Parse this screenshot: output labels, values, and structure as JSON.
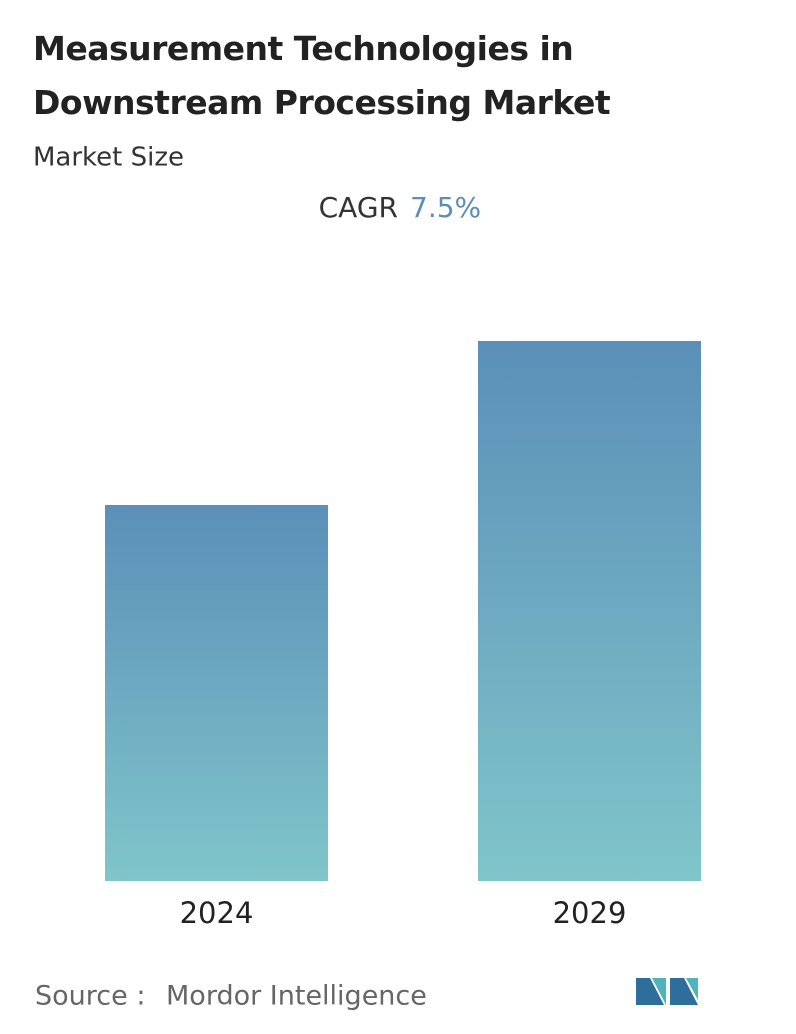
{
  "chart_data": {
    "type": "bar",
    "title": "Measurement Technologies in Downstream Processing Market",
    "subtitle": "Market Size",
    "cagr_title": "CAGR",
    "cagr": {
      "value": 7.5,
      "label": "7.5%"
    },
    "categories": [
      "2024",
      "2029"
    ],
    "values": [
      376,
      540
    ],
    "color": [
      "#5b8fb8",
      "#80c5ca"
    ],
    "source_label": "Source :",
    "source": "Mordor Intelligence"
  }
}
